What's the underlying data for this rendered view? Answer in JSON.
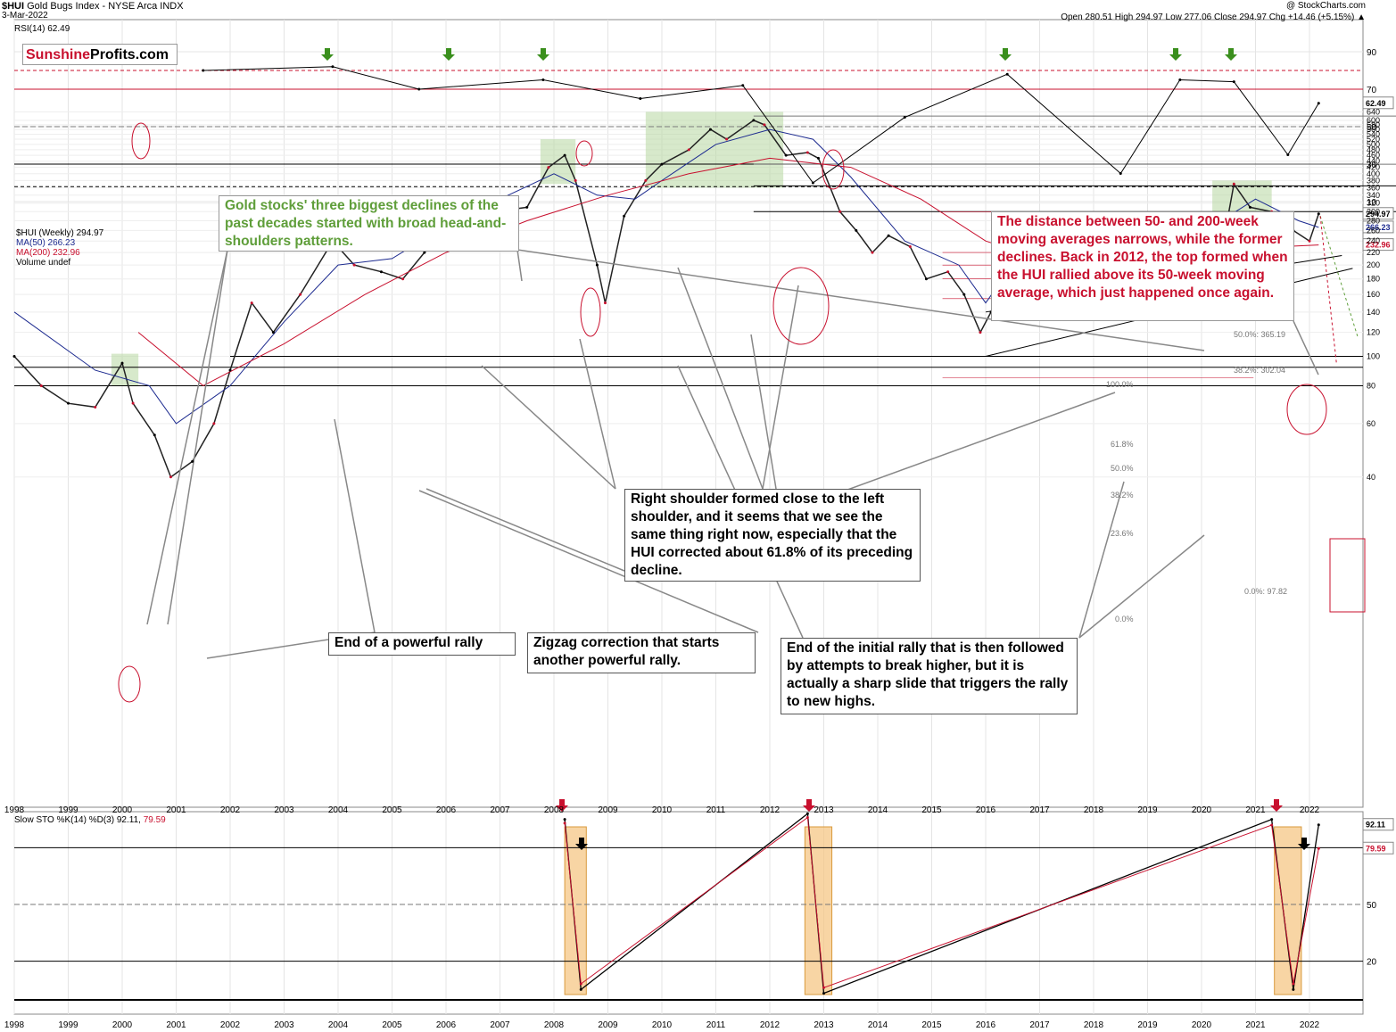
{
  "header": {
    "symbol": "$HUI",
    "name": "Gold Bugs Index - NYSE Arca INDX",
    "date": "3-Mar-2022",
    "ohlc": "Open 280.51  High 294.97  Low 277.06  Close 294.97  Chg +14.46 (+5.15%) ▲",
    "credit": "@ StockCharts.com"
  },
  "logo": {
    "part1": "Sunshine",
    "part2": "Profits.com"
  },
  "colors": {
    "price_up": "#000000",
    "price_down": "#c8102e",
    "ma50": "#1c2a8f",
    "ma200": "#c8102e",
    "hs_zone": "#b6d7a0",
    "sto_zone": "#f5c37d",
    "arrow_green": "#3a8f1d",
    "arrow_red": "#c8102e"
  },
  "rsi_panel": {
    "label": "RSI(14) 62.49",
    "current": 62.49,
    "levels": [
      90,
      80,
      70,
      50,
      30,
      10
    ],
    "tick_labels": [
      "90",
      "70",
      "50",
      "30",
      "10"
    ],
    "value_tag": "62.49"
  },
  "price_panel": {
    "legend": [
      "$HUI (Weekly) 294.97",
      "MA(50) 266.23",
      "MA(200) 232.96",
      "Volume undef"
    ],
    "tick_labels": [
      "640",
      "600",
      "580",
      "560",
      "540",
      "520",
      "500",
      "480",
      "460",
      "440",
      "420",
      "400",
      "380",
      "360",
      "340",
      "320",
      "300",
      "280",
      "260",
      "240",
      "220",
      "200",
      "180",
      "160",
      "140",
      "120",
      "100",
      "80",
      "60",
      "40"
    ],
    "value_tags": [
      "294.97",
      "266.23",
      "232.96"
    ],
    "fib_labels": [
      "50.0%: 365.19",
      "38.2%: 302.04",
      "0.0%: 97.82",
      "100.0%",
      "61.8%",
      "50.0%",
      "38.2%",
      "23.6%",
      "0.0%"
    ]
  },
  "sto_panel": {
    "label_prefix": "Slow STO %K(14) %D(3) 92.11,",
    "label_value": "79.59",
    "tick_labels": [
      "50",
      "20"
    ],
    "value_tags": [
      "92.11",
      "79.59"
    ]
  },
  "x_axis": {
    "years": [
      "1998",
      "1999",
      "2000",
      "2001",
      "2002",
      "2003",
      "2004",
      "2005",
      "2006",
      "2007",
      "2008",
      "2009",
      "2010",
      "2011",
      "2012",
      "2013",
      "2014",
      "2015",
      "2016",
      "2017",
      "2018",
      "2019",
      "2020",
      "2021",
      "2022"
    ]
  },
  "annotations": {
    "hs": "Gold stocks' three biggest declines of the past decades started with broad head-and-shoulders patterns.",
    "ma": "The distance between 50- and 200-week moving averages narrows, while the former declines. Back in 2012, the top formed when the HUI rallied above its 50-week moving average, which just happened once again.",
    "shoulder": "Right shoulder formed close to the left shoulder, and it seems that we see the same thing right now, especially that the HUI corrected about 61.8% of its preceding decline.",
    "rally_end": "End of a powerful rally",
    "zigzag": "Zigzag correction that starts another powerful rally.",
    "initial": "End of the initial rally that is then followed by attempts to break higher, but it is actually a sharp slide that triggers the rally to new highs."
  },
  "chart_data": [
    {
      "type": "line",
      "title": "$HUI Gold Bugs Index - NYSE Arca INDX (Weekly)",
      "ylabel": "",
      "y_scale": "log",
      "ylim": [
        35,
        660
      ],
      "series": [
        {
          "name": "$HUI (Weekly)",
          "x": [
            1998.0,
            1998.5,
            1999.0,
            1999.5,
            2000.0,
            2000.2,
            2000.6,
            2000.9,
            2001.3,
            2001.7,
            2002.0,
            2002.4,
            2002.8,
            2003.3,
            2003.9,
            2004.3,
            2004.8,
            2005.2,
            2005.6,
            2005.9,
            2006.4,
            2006.9,
            2007.5,
            2007.9,
            2008.2,
            2008.4,
            2008.8,
            2008.95,
            2009.3,
            2009.7,
            2010.0,
            2010.5,
            2010.9,
            2011.2,
            2011.7,
            2011.9,
            2012.3,
            2012.7,
            2012.9,
            2013.3,
            2013.6,
            2013.9,
            2014.2,
            2014.6,
            2014.9,
            2015.3,
            2015.6,
            2015.9,
            2016.1,
            2016.6,
            2016.9,
            2017.3,
            2017.9,
            2018.4,
            2018.7,
            2019.1,
            2019.6,
            2019.9,
            2020.2,
            2020.6,
            2020.9,
            2021.3,
            2021.7,
            2022.0,
            2022.17
          ],
          "values": [
            100,
            80,
            70,
            68,
            95,
            70,
            55,
            40,
            45,
            60,
            90,
            150,
            120,
            160,
            240,
            200,
            190,
            180,
            220,
            250,
            310,
            300,
            310,
            420,
            460,
            380,
            200,
            150,
            290,
            380,
            430,
            480,
            560,
            520,
            600,
            580,
            460,
            470,
            450,
            300,
            260,
            220,
            250,
            230,
            180,
            190,
            160,
            120,
            140,
            280,
            180,
            200,
            200,
            170,
            140,
            170,
            220,
            260,
            150,
            370,
            310,
            300,
            260,
            240,
            294.97
          ]
        },
        {
          "name": "MA(50)",
          "x": [
            1998.0,
            1999.5,
            2000.5,
            2001.0,
            2002.0,
            2003.0,
            2004.0,
            2005.0,
            2006.0,
            2007.0,
            2008.0,
            2008.8,
            2009.5,
            2010.0,
            2011.0,
            2012.0,
            2012.8,
            2013.5,
            2014.5,
            2015.5,
            2016.0,
            2016.5,
            2017.5,
            2018.5,
            2019.0,
            2019.8,
            2020.5,
            2021.0,
            2021.8,
            2022.17
          ],
          "values": [
            140,
            90,
            80,
            60,
            80,
            130,
            200,
            210,
            270,
            330,
            400,
            340,
            330,
            380,
            500,
            560,
            520,
            390,
            240,
            200,
            150,
            200,
            230,
            190,
            170,
            200,
            290,
            330,
            280,
            266.23
          ]
        },
        {
          "name": "MA(200)",
          "x": [
            2000.3,
            2001.5,
            2003.0,
            2004.5,
            2006.0,
            2007.5,
            2009.0,
            2010.5,
            2012.0,
            2013.5,
            2014.8,
            2016.0,
            2017.0,
            2018.5,
            2019.5,
            2020.5,
            2021.5,
            2022.17
          ],
          "values": [
            120,
            80,
            110,
            160,
            220,
            280,
            340,
            400,
            450,
            420,
            330,
            240,
            210,
            190,
            190,
            210,
            230,
            232.96
          ]
        }
      ]
    },
    {
      "type": "line",
      "title": "RSI(14)",
      "ylim": [
        10,
        90
      ],
      "series": [
        {
          "name": "RSI(14)",
          "x": [
            2001.5,
            2003.9,
            2005.5,
            2007.8,
            2009.6,
            2011.5,
            2012.8,
            2014.5,
            2016.4,
            2018.5,
            2019.6,
            2020.6,
            2021.6,
            2022.17
          ],
          "values": [
            80,
            82,
            70,
            75,
            65,
            72,
            20,
            55,
            78,
            25,
            75,
            74,
            35,
            62.49
          ]
        }
      ]
    },
    {
      "type": "line",
      "title": "Slow STO %K(14) %D(3)",
      "ylim": [
        0,
        100
      ],
      "series": [
        {
          "name": "%K(14)",
          "x": [
            2008.2,
            2008.5,
            2012.7,
            2013.0,
            2021.3,
            2021.7,
            2022.17
          ],
          "values": [
            95,
            5,
            98,
            3,
            95,
            5,
            92.11
          ]
        },
        {
          "name": "%D(3)",
          "x": [
            2008.2,
            2008.5,
            2012.7,
            2013.0,
            2021.3,
            2021.7,
            2022.17
          ],
          "values": [
            93,
            8,
            96,
            6,
            92,
            8,
            79.59
          ]
        }
      ]
    }
  ]
}
